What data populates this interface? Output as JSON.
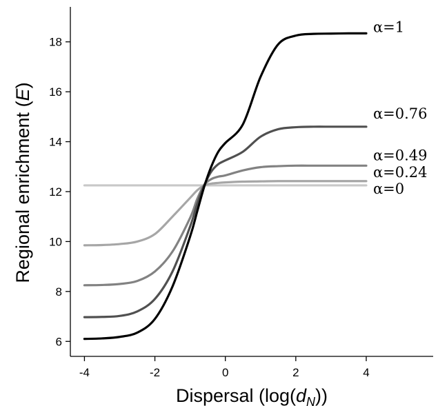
{
  "chart_data": {
    "type": "line",
    "title": "",
    "xlabel_parts": {
      "prefix": "Dispersal (log(",
      "var": "d",
      "sub": "N",
      "suffix": "))"
    },
    "ylabel_parts": {
      "prefix": "Regional enrichment (",
      "var": "E",
      "suffix": ")"
    },
    "xlim": [
      -4.4,
      5.9
    ],
    "ylim": [
      5.4,
      19.4
    ],
    "xticks": [
      -4,
      -2,
      0,
      2,
      4
    ],
    "xtick_labels": [
      "-4",
      "-2",
      "0",
      "2",
      "4"
    ],
    "yticks": [
      6,
      8,
      10,
      12,
      14,
      16,
      18
    ],
    "ytick_labels": [
      "6",
      "8",
      "10",
      "12",
      "14",
      "16",
      "18"
    ],
    "grid": false,
    "legend": "none",
    "x": [
      -4,
      -3.5,
      -3,
      -2.5,
      -2,
      -1.5,
      -1,
      -0.8,
      -0.6,
      -0.4,
      -0.2,
      0,
      0.5,
      1,
      1.5,
      2,
      2.5,
      3,
      3.5,
      4
    ],
    "series": [
      {
        "name": "α=1",
        "color": "#000000",
        "values": [
          6.1,
          6.12,
          6.18,
          6.35,
          6.9,
          8.2,
          10.2,
          11.2,
          12.2,
          13.0,
          13.6,
          13.95,
          14.7,
          16.6,
          17.9,
          18.25,
          18.32,
          18.33,
          18.34,
          18.34
        ]
      },
      {
        "name": "α=0.76",
        "color": "#505050",
        "values": [
          6.97,
          6.98,
          7.02,
          7.2,
          7.7,
          8.8,
          10.6,
          11.5,
          12.25,
          12.8,
          13.1,
          13.25,
          13.6,
          14.2,
          14.5,
          14.58,
          14.6,
          14.6,
          14.6,
          14.6
        ]
      },
      {
        "name": "α=0.49",
        "color": "#828282",
        "values": [
          8.25,
          8.26,
          8.3,
          8.42,
          8.8,
          9.6,
          10.95,
          11.7,
          12.27,
          12.5,
          12.6,
          12.65,
          12.85,
          12.98,
          13.02,
          13.04,
          13.04,
          13.04,
          13.04,
          13.04
        ]
      },
      {
        "name": "α=0.24",
        "color": "#a6a6a6",
        "values": [
          9.85,
          9.86,
          9.9,
          10.0,
          10.3,
          11.0,
          11.75,
          12.05,
          12.25,
          12.32,
          12.35,
          12.37,
          12.4,
          12.41,
          12.42,
          12.42,
          12.42,
          12.42,
          12.42,
          12.42
        ]
      },
      {
        "name": "α=0",
        "color": "#c8c8c8",
        "values": [
          12.25,
          12.25,
          12.25,
          12.25,
          12.25,
          12.25,
          12.25,
          12.25,
          12.25,
          12.25,
          12.25,
          12.25,
          12.25,
          12.25,
          12.25,
          12.25,
          12.25,
          12.25,
          12.25,
          12.25
        ]
      }
    ]
  }
}
